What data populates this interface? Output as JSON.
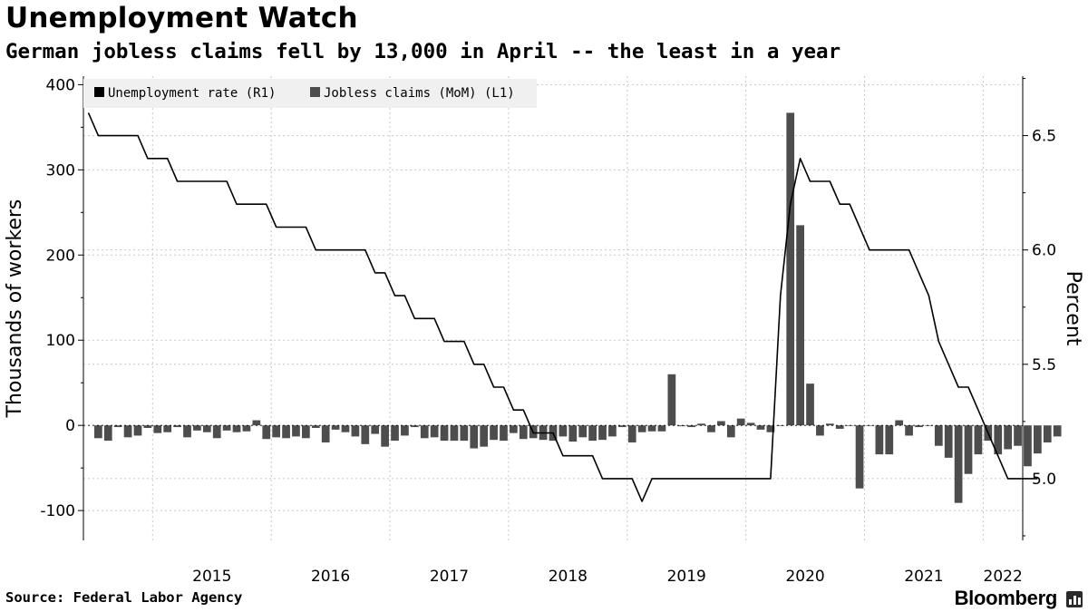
{
  "header": {
    "title": "Unemployment Watch",
    "subtitle": "German jobless claims fell by 13,000 in April -- the least in a year"
  },
  "footer": {
    "source": "Source: Federal Labor Agency",
    "brand": "Bloomberg"
  },
  "colors": {
    "bar": "#4d4d4d",
    "line": "#000000",
    "grid": "#c8c8c8",
    "legend_bg": "#f0f0f0"
  },
  "chart_data": {
    "type": "bar+line",
    "title": "Unemployment Watch",
    "subtitle": "German jobless claims fell by 13,000 in April -- the least in a year",
    "ylabel_left": "Thousands of workers",
    "ylabel_right": "Percent",
    "ylim_left": [
      -135,
      410
    ],
    "ylim_right": [
      4.73,
      6.76
    ],
    "yticks_left": [
      400,
      300,
      200,
      100,
      0,
      -100
    ],
    "yticks_right": [
      6.5,
      6.0,
      5.5,
      5.0
    ],
    "ytick_labels_left": [
      "400",
      "300",
      "200",
      "100",
      "0",
      "-100"
    ],
    "ytick_labels_right": [
      "6.5",
      "6.0",
      "5.5",
      "5.0"
    ],
    "x_start": "2014-06",
    "x_end": "2022-05",
    "x_tick_labels": [
      "2015",
      "2016",
      "2017",
      "2018",
      "2019",
      "2020",
      "2021",
      "2022"
    ],
    "grid": "dotted",
    "legend": [
      {
        "label": "Unemployment rate (R1)",
        "series": "unemployment_rate"
      },
      {
        "label": "Jobless claims (MoM) (L1)",
        "series": "jobless_claims"
      }
    ],
    "legend_position": "top-left",
    "series": [
      {
        "name": "Jobless claims (MoM)",
        "axis": "left",
        "kind": "bar",
        "start": "2014-07",
        "values": [
          -15,
          -18,
          -2,
          -14,
          -12,
          -3,
          -9,
          -8,
          -2,
          -14,
          -6,
          -8,
          -15,
          -6,
          -8,
          -7,
          6,
          -16,
          -14,
          -15,
          -13,
          -15,
          -3,
          -20,
          -5,
          -8,
          -13,
          -22,
          -10,
          -25,
          -18,
          -12,
          -2,
          -15,
          -14,
          -18,
          -18,
          -18,
          -27,
          -25,
          -17,
          -18,
          -9,
          -16,
          -15,
          -17,
          -18,
          -13,
          -19,
          -14,
          -18,
          -17,
          -13,
          -2,
          -20,
          -8,
          -7,
          -7,
          60,
          -1,
          -2,
          2,
          -8,
          5,
          -14,
          8,
          3,
          -5,
          -8,
          0,
          367,
          235,
          49,
          -12,
          2,
          -4,
          0,
          -74,
          0,
          -34,
          -34,
          6,
          -12,
          -2,
          0,
          -24,
          -38,
          -91,
          -57,
          -34,
          -18,
          -34,
          -28,
          -24,
          -48,
          -33,
          -20,
          -13
        ]
      },
      {
        "name": "Unemployment rate",
        "axis": "right",
        "kind": "line-step",
        "start": "2014-06",
        "values": [
          6.6,
          6.5,
          6.5,
          6.5,
          6.5,
          6.5,
          6.4,
          6.4,
          6.4,
          6.3,
          6.3,
          6.3,
          6.3,
          6.3,
          6.3,
          6.2,
          6.2,
          6.2,
          6.2,
          6.1,
          6.1,
          6.1,
          6.1,
          6.0,
          6.0,
          6.0,
          6.0,
          6.0,
          6.0,
          5.9,
          5.9,
          5.8,
          5.8,
          5.7,
          5.7,
          5.7,
          5.6,
          5.6,
          5.6,
          5.5,
          5.5,
          5.4,
          5.4,
          5.3,
          5.3,
          5.2,
          5.2,
          5.2,
          5.1,
          5.1,
          5.1,
          5.1,
          5.0,
          5.0,
          5.0,
          5.0,
          4.9,
          5.0,
          5.0,
          5.0,
          5.0,
          5.0,
          5.0,
          5.0,
          5.0,
          5.0,
          5.0,
          5.0,
          5.0,
          5.0,
          5.8,
          6.2,
          6.4,
          6.3,
          6.3,
          6.3,
          6.2,
          6.2,
          6.1,
          6.0,
          6.0,
          6.0,
          6.0,
          6.0,
          5.9,
          5.8,
          5.6,
          5.5,
          5.4,
          5.4,
          5.3,
          5.2,
          5.1,
          5.0,
          5.0,
          5.0,
          5.0
        ]
      }
    ]
  }
}
